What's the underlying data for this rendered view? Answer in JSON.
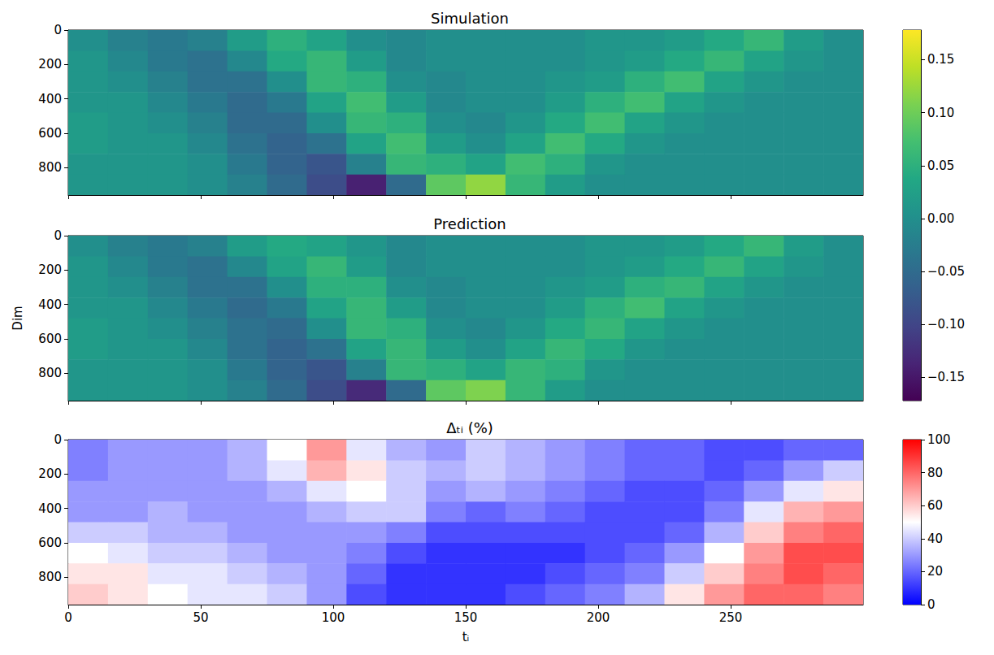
{
  "chart_data": [
    {
      "type": "heatmap",
      "title": "Simulation",
      "color": "viridis",
      "tick_labels": "y",
      "x_edges": [
        0,
        15,
        30,
        45,
        60,
        75,
        90,
        105,
        120,
        135,
        150,
        165,
        180,
        195,
        210,
        225,
        240,
        255,
        270,
        285,
        300
      ],
      "y_edges": [
        0,
        120,
        240,
        360,
        480,
        600,
        720,
        840,
        960
      ],
      "xlim": [
        0,
        300
      ],
      "ylim": [
        960,
        0
      ],
      "xticks": [
        0,
        50,
        100,
        150,
        200,
        250
      ],
      "yticks": [
        0,
        200,
        400,
        600,
        800
      ],
      "color_range": [
        -0.172,
        0.178
      ],
      "color_ticks": [
        {
          "value": -0.15,
          "label": "−0.15"
        },
        {
          "value": -0.1,
          "label": "−0.10"
        },
        {
          "value": -0.05,
          "label": "−0.05"
        },
        {
          "value": 0,
          "label": "0.00"
        },
        0.05,
        {
          "value": 0.1,
          "label": "0.10"
        },
        0.15
      ],
      "cells": [
        [
          0.0,
          -0.02,
          -0.03,
          -0.02,
          0.02,
          0.05,
          0.03,
          0.0,
          -0.01,
          0.0,
          0.0,
          0.0,
          0.0,
          0.01,
          0.01,
          0.02,
          0.04,
          0.06,
          0.02,
          0.0
        ],
        [
          0.01,
          -0.01,
          -0.03,
          -0.04,
          -0.01,
          0.04,
          0.06,
          0.02,
          -0.01,
          0.0,
          0.0,
          0.0,
          0.0,
          0.01,
          0.02,
          0.04,
          0.06,
          0.03,
          0.01,
          0.0
        ],
        [
          0.01,
          0.0,
          -0.02,
          -0.04,
          -0.04,
          0.0,
          0.06,
          0.05,
          0.0,
          -0.01,
          0.0,
          0.0,
          0.01,
          0.02,
          0.05,
          0.07,
          0.03,
          0.01,
          0.0,
          0.0
        ],
        [
          0.01,
          0.01,
          -0.01,
          -0.03,
          -0.05,
          -0.03,
          0.03,
          0.07,
          0.02,
          -0.01,
          0.0,
          0.0,
          0.02,
          0.05,
          0.07,
          0.03,
          0.01,
          0.0,
          0.0,
          0.0
        ],
        [
          0.02,
          0.01,
          0.0,
          -0.02,
          -0.05,
          -0.05,
          0.0,
          0.06,
          0.05,
          0.0,
          -0.01,
          0.01,
          0.04,
          0.07,
          0.03,
          0.01,
          0.0,
          0.0,
          0.0,
          0.0
        ],
        [
          0.02,
          0.01,
          0.01,
          -0.01,
          -0.04,
          -0.06,
          -0.04,
          0.03,
          0.07,
          0.02,
          0.0,
          0.03,
          0.07,
          0.04,
          0.01,
          0.0,
          0.0,
          0.0,
          0.0,
          0.0
        ],
        [
          0.01,
          0.01,
          0.01,
          0.0,
          -0.03,
          -0.06,
          -0.08,
          -0.02,
          0.06,
          0.05,
          0.03,
          0.07,
          0.05,
          0.01,
          0.0,
          0.0,
          0.0,
          0.0,
          0.0,
          0.0
        ],
        [
          0.01,
          0.01,
          0.01,
          0.0,
          -0.02,
          -0.05,
          -0.09,
          -0.14,
          -0.05,
          0.09,
          0.12,
          0.06,
          0.02,
          0.0,
          0.0,
          0.0,
          0.0,
          0.0,
          0.0,
          0.0
        ]
      ]
    },
    {
      "type": "heatmap",
      "title": "Prediction",
      "ylabel": "Dim",
      "color": "viridis",
      "tick_labels": "y",
      "x_edges": [
        0,
        15,
        30,
        45,
        60,
        75,
        90,
        105,
        120,
        135,
        150,
        165,
        180,
        195,
        210,
        225,
        240,
        255,
        270,
        285,
        300
      ],
      "y_edges": [
        0,
        120,
        240,
        360,
        480,
        600,
        720,
        840,
        960
      ],
      "xlim": [
        0,
        300
      ],
      "ylim": [
        960,
        0
      ],
      "xticks": [
        0,
        50,
        100,
        150,
        200,
        250
      ],
      "yticks": [
        0,
        200,
        400,
        600,
        800
      ],
      "color_range": [
        -0.172,
        0.178
      ],
      "color_ticks": [
        {
          "value": -0.15,
          "label": "−0.15"
        },
        {
          "value": -0.1,
          "label": "−0.10"
        },
        {
          "value": -0.05,
          "label": "−0.05"
        },
        {
          "value": 0,
          "label": "0.00"
        },
        0.05,
        {
          "value": 0.1,
          "label": "0.10"
        },
        0.15
      ],
      "cells": [
        [
          0.0,
          -0.02,
          -0.03,
          -0.02,
          0.02,
          0.04,
          0.03,
          0.01,
          -0.01,
          0.0,
          0.0,
          0.0,
          0.0,
          0.01,
          0.01,
          0.02,
          0.04,
          0.06,
          0.02,
          0.0
        ],
        [
          0.01,
          -0.01,
          -0.03,
          -0.04,
          -0.01,
          0.03,
          0.06,
          0.02,
          -0.01,
          0.0,
          0.0,
          0.0,
          0.0,
          0.01,
          0.02,
          0.04,
          0.06,
          0.03,
          0.01,
          0.0
        ],
        [
          0.01,
          0.0,
          -0.02,
          -0.04,
          -0.04,
          0.0,
          0.05,
          0.05,
          0.0,
          -0.01,
          0.0,
          0.0,
          0.01,
          0.02,
          0.05,
          0.06,
          0.03,
          0.01,
          0.0,
          0.0
        ],
        [
          0.01,
          0.01,
          -0.01,
          -0.03,
          -0.05,
          -0.03,
          0.03,
          0.06,
          0.02,
          -0.01,
          0.0,
          0.0,
          0.02,
          0.05,
          0.07,
          0.03,
          0.01,
          0.0,
          0.0,
          0.0
        ],
        [
          0.02,
          0.01,
          0.0,
          -0.02,
          -0.04,
          -0.05,
          0.0,
          0.06,
          0.05,
          0.0,
          -0.01,
          0.01,
          0.04,
          0.06,
          0.03,
          0.01,
          0.0,
          0.0,
          0.0,
          0.0
        ],
        [
          0.02,
          0.01,
          0.01,
          -0.01,
          -0.04,
          -0.06,
          -0.04,
          0.03,
          0.06,
          0.02,
          0.0,
          0.03,
          0.06,
          0.04,
          0.01,
          0.0,
          0.0,
          0.0,
          0.0,
          0.0
        ],
        [
          0.01,
          0.01,
          0.01,
          0.0,
          -0.03,
          -0.06,
          -0.08,
          -0.02,
          0.06,
          0.05,
          0.03,
          0.06,
          0.05,
          0.01,
          0.0,
          0.0,
          0.0,
          0.0,
          0.0,
          0.0
        ],
        [
          0.01,
          0.01,
          0.01,
          0.0,
          -0.02,
          -0.05,
          -0.09,
          -0.13,
          -0.05,
          0.09,
          0.11,
          0.06,
          0.02,
          0.0,
          0.0,
          0.0,
          0.0,
          0.0,
          0.0,
          0.0
        ]
      ]
    },
    {
      "type": "heatmap",
      "title": "Δₜᵢ (%)",
      "xlabel": "tᵢ",
      "color": "bwr",
      "x_edges": [
        0,
        15,
        30,
        45,
        60,
        75,
        90,
        105,
        120,
        135,
        150,
        165,
        180,
        195,
        210,
        225,
        240,
        255,
        270,
        285,
        300
      ],
      "y_edges": [
        0,
        120,
        240,
        360,
        480,
        600,
        720,
        840,
        960
      ],
      "xlim": [
        0,
        300
      ],
      "ylim": [
        960,
        0
      ],
      "xticks": [
        0,
        50,
        100,
        150,
        200,
        250
      ],
      "yticks": [
        0,
        200,
        400,
        600,
        800
      ],
      "color_range": [
        0,
        100
      ],
      "color_ticks": [
        0,
        20,
        40,
        60,
        80,
        100
      ],
      "cells": [
        [
          25,
          30,
          30,
          30,
          35,
          50,
          70,
          45,
          35,
          30,
          40,
          35,
          30,
          25,
          20,
          20,
          15,
          15,
          20,
          20
        ],
        [
          25,
          30,
          30,
          30,
          35,
          45,
          65,
          55,
          40,
          35,
          40,
          35,
          30,
          25,
          20,
          20,
          15,
          20,
          30,
          40
        ],
        [
          30,
          30,
          30,
          30,
          30,
          35,
          45,
          50,
          40,
          30,
          35,
          30,
          25,
          20,
          15,
          15,
          20,
          30,
          45,
          55
        ],
        [
          30,
          30,
          35,
          30,
          30,
          30,
          35,
          40,
          40,
          25,
          20,
          25,
          20,
          15,
          15,
          15,
          25,
          45,
          65,
          70
        ],
        [
          40,
          40,
          35,
          35,
          30,
          30,
          30,
          30,
          25,
          15,
          15,
          15,
          15,
          15,
          15,
          20,
          35,
          60,
          75,
          80
        ],
        [
          50,
          45,
          40,
          40,
          35,
          30,
          30,
          25,
          15,
          10,
          10,
          10,
          10,
          15,
          20,
          30,
          50,
          70,
          85,
          85
        ],
        [
          55,
          55,
          45,
          45,
          40,
          35,
          30,
          20,
          10,
          10,
          10,
          10,
          15,
          20,
          25,
          40,
          60,
          75,
          85,
          80
        ],
        [
          60,
          55,
          50,
          45,
          45,
          40,
          30,
          15,
          10,
          10,
          10,
          15,
          20,
          25,
          35,
          55,
          70,
          80,
          80,
          75
        ]
      ]
    }
  ]
}
